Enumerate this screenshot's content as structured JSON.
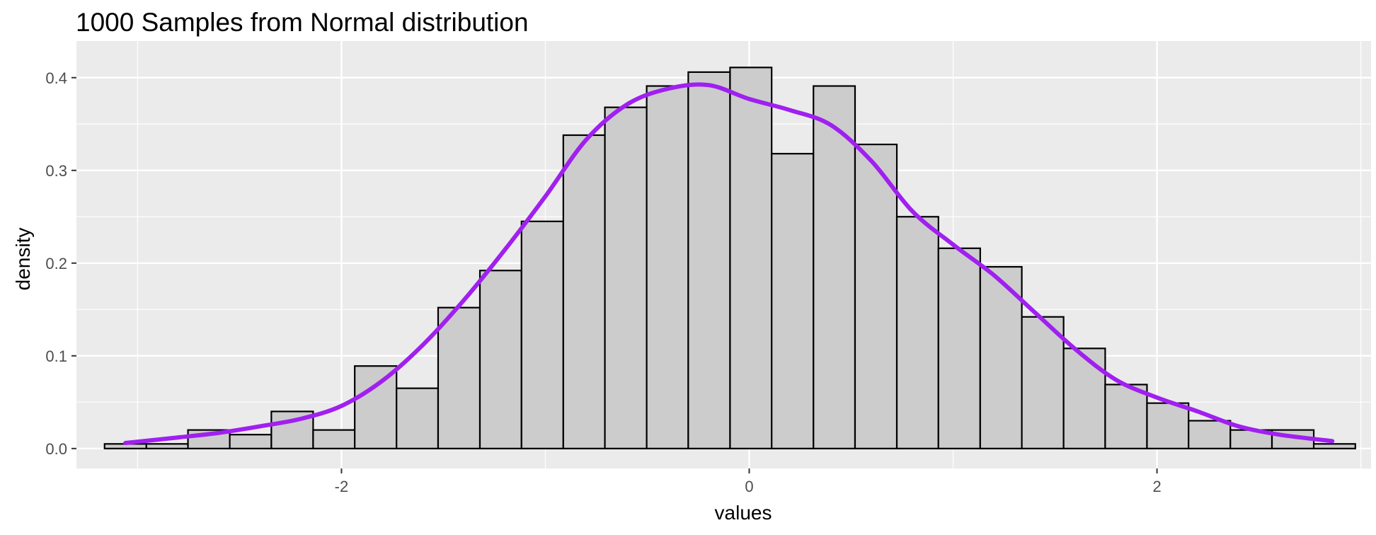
{
  "chart_data": {
    "type": "bar",
    "title": "1000 Samples from Normal distribution",
    "xlabel": "values",
    "ylabel": "density",
    "xlim": [
      -3.3,
      3.05
    ],
    "ylim": [
      -0.0215,
      0.4395
    ],
    "x_ticks": [
      -2,
      0,
      2
    ],
    "x_tick_labels": [
      "-2",
      "0",
      "2"
    ],
    "y_ticks": [
      0.0,
      0.1,
      0.2,
      0.3,
      0.4
    ],
    "y_tick_labels": [
      "0.0",
      "0.1",
      "0.2",
      "0.3",
      "0.4"
    ],
    "grid": true,
    "bin_width": 0.2045,
    "histogram": {
      "bin_edges": [
        -3.162,
        -2.957,
        -2.753,
        -2.548,
        -2.344,
        -2.139,
        -1.935,
        -1.73,
        -1.526,
        -1.321,
        -1.117,
        -0.912,
        -0.708,
        -0.503,
        -0.299,
        -0.094,
        0.11,
        0.315,
        0.519,
        0.724,
        0.928,
        1.133,
        1.337,
        1.542,
        1.746,
        1.951,
        2.155,
        2.36,
        2.564,
        2.769,
        2.973
      ],
      "density": [
        0.005,
        0.005,
        0.02,
        0.015,
        0.04,
        0.02,
        0.089,
        0.065,
        0.152,
        0.192,
        0.245,
        0.338,
        0.368,
        0.391,
        0.406,
        0.411,
        0.318,
        0.391,
        0.328,
        0.25,
        0.216,
        0.196,
        0.142,
        0.108,
        0.069,
        0.049,
        0.03,
        0.02,
        0.02,
        0.005
      ],
      "fill": "#cccccc",
      "outline": "#000000"
    },
    "density_curve": {
      "color": "#a020f0",
      "x": [
        -3.06,
        -2.8,
        -2.6,
        -2.4,
        -2.2,
        -2.0,
        -1.8,
        -1.6,
        -1.4,
        -1.2,
        -1.0,
        -0.8,
        -0.6,
        -0.4,
        -0.2,
        0.0,
        0.2,
        0.4,
        0.6,
        0.8,
        1.0,
        1.2,
        1.4,
        1.6,
        1.8,
        2.0,
        2.2,
        2.4,
        2.6,
        2.86
      ],
      "y": [
        0.006,
        0.012,
        0.017,
        0.024,
        0.032,
        0.046,
        0.073,
        0.112,
        0.16,
        0.214,
        0.272,
        0.333,
        0.371,
        0.388,
        0.392,
        0.377,
        0.365,
        0.349,
        0.31,
        0.256,
        0.22,
        0.187,
        0.147,
        0.107,
        0.074,
        0.055,
        0.04,
        0.024,
        0.015,
        0.008
      ]
    },
    "panel_background": "#ebebeb",
    "grid_color": "#ffffff"
  }
}
